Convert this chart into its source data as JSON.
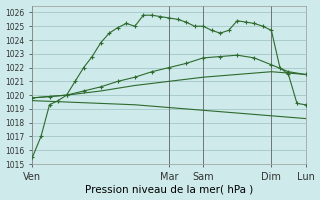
{
  "xlabel": "Pression niveau de la mer( hPa )",
  "ylim": [
    1015,
    1026.5
  ],
  "xlim": [
    0,
    192
  ],
  "bg_color": "#ceeaea",
  "grid_color": "#aacccc",
  "line_color": "#2d6a2d",
  "x_tick_positions": [
    0,
    96,
    120,
    168,
    192
  ],
  "x_tick_labels": [
    "Ven",
    "Mar",
    "Sam",
    "Dim",
    "Lun"
  ],
  "vline_positions": [
    0,
    96,
    120,
    168,
    192
  ],
  "y_ticks": [
    1015,
    1016,
    1017,
    1018,
    1019,
    1020,
    1021,
    1022,
    1023,
    1024,
    1025,
    1026
  ],
  "lines": [
    {
      "x": [
        0,
        6,
        12,
        18,
        24,
        30,
        36,
        42,
        48,
        54,
        60,
        66,
        72,
        78,
        84,
        90,
        96,
        102,
        108,
        114,
        120,
        126,
        132,
        138,
        144,
        150,
        156,
        162,
        168,
        174,
        180,
        186,
        192
      ],
      "y": [
        1015.5,
        1017.0,
        1019.3,
        1019.6,
        1020.0,
        1021.0,
        1022.0,
        1022.8,
        1023.8,
        1024.5,
        1024.9,
        1025.2,
        1025.0,
        1025.8,
        1025.8,
        1025.7,
        1025.6,
        1025.5,
        1025.3,
        1025.0,
        1025.0,
        1024.7,
        1024.5,
        1024.7,
        1025.4,
        1025.3,
        1025.2,
        1025.0,
        1024.7,
        1022.0,
        1021.5,
        1019.4,
        1019.3
      ],
      "marker": true
    },
    {
      "x": [
        0,
        12,
        24,
        36,
        48,
        60,
        72,
        84,
        96,
        108,
        120,
        132,
        144,
        156,
        168,
        180,
        192
      ],
      "y": [
        1019.8,
        1019.9,
        1020.0,
        1020.3,
        1020.6,
        1021.0,
        1021.3,
        1021.7,
        1022.0,
        1022.3,
        1022.7,
        1022.8,
        1022.9,
        1022.7,
        1022.2,
        1021.7,
        1021.5
      ],
      "marker": true
    },
    {
      "x": [
        0,
        24,
        48,
        72,
        96,
        120,
        144,
        168,
        192
      ],
      "y": [
        1019.8,
        1020.0,
        1020.3,
        1020.7,
        1021.0,
        1021.3,
        1021.5,
        1021.7,
        1021.5
      ],
      "marker": false
    },
    {
      "x": [
        0,
        24,
        48,
        72,
        96,
        120,
        144,
        168,
        192
      ],
      "y": [
        1019.6,
        1019.5,
        1019.4,
        1019.3,
        1019.1,
        1018.9,
        1018.7,
        1018.5,
        1018.3
      ],
      "marker": false
    },
    {
      "x": [
        168,
        174,
        180,
        186,
        192
      ],
      "y": [
        1024.7,
        1021.7,
        1021.5,
        1019.4,
        1019.3
      ],
      "marker": true
    }
  ]
}
